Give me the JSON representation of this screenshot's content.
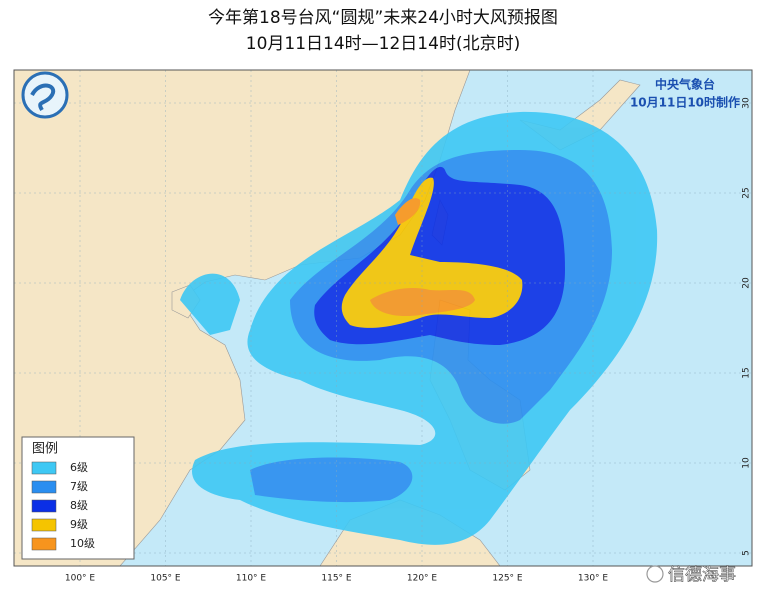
{
  "header": {
    "title": "今年第18号台风“圆规”未来24小时大风预报图",
    "subtitle": "10月11日14时—12日14时(北京时)"
  },
  "agency": {
    "name": "中央气象台",
    "issued": "10月11日10时制作"
  },
  "legend": {
    "title": "图例",
    "items": [
      {
        "label": "6级",
        "color": "#3ec8f4"
      },
      {
        "label": "7级",
        "color": "#2a8ef0"
      },
      {
        "label": "8级",
        "color": "#0b2fe6"
      },
      {
        "label": "9级",
        "color": "#f5c400"
      },
      {
        "label": "10级",
        "color": "#f7941d"
      }
    ]
  },
  "map": {
    "lon_labels": [
      "100° E",
      "105° E",
      "110° E",
      "115° E",
      "120° E",
      "125° E",
      "130° E"
    ],
    "lat_labels": [
      "30",
      "25",
      "20",
      "15",
      "10",
      "5"
    ]
  },
  "watermark": "信德海事"
}
